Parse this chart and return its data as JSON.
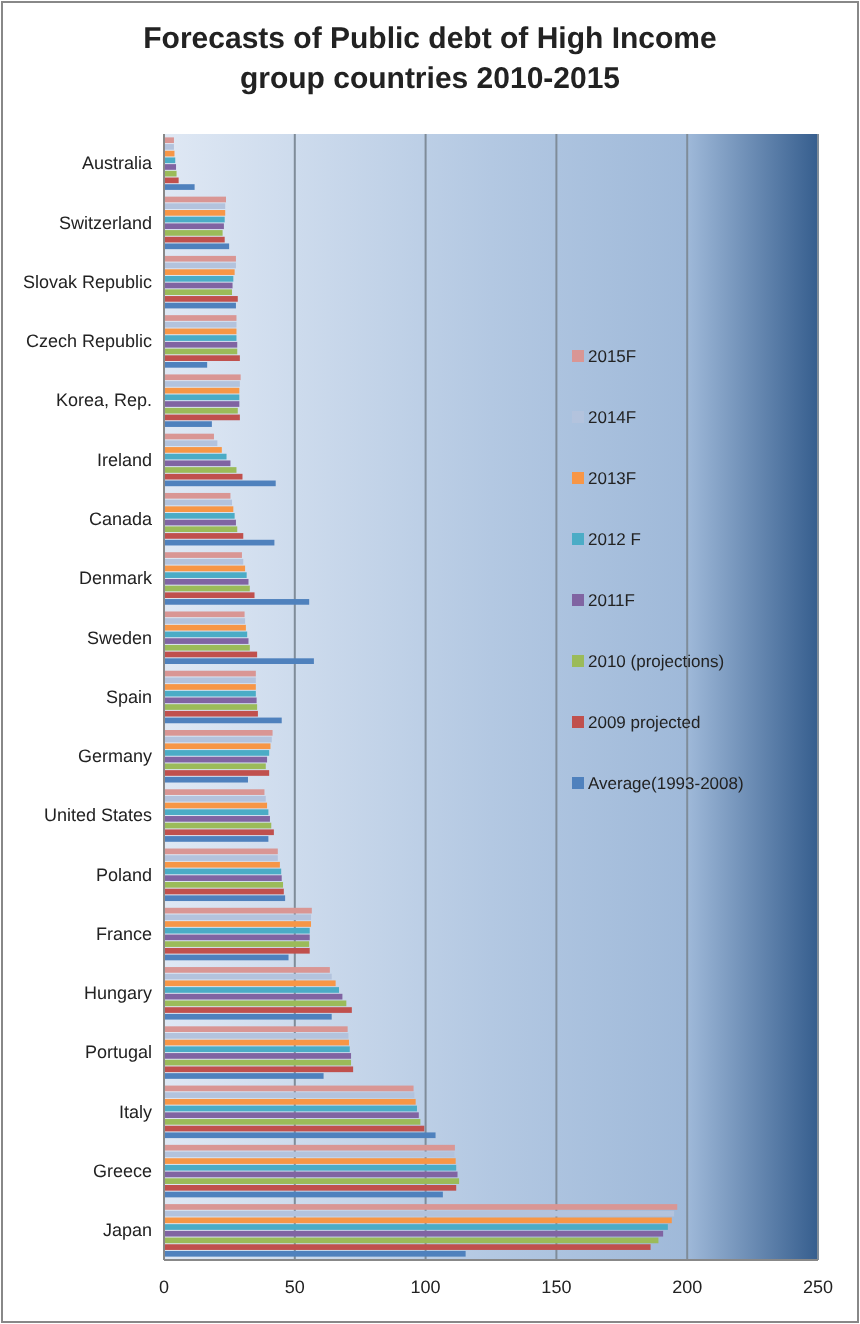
{
  "chart_data": {
    "type": "bar",
    "orientation": "horizontal",
    "title": "Forecasts of Public debt of High Income group countries 2010-2015",
    "categories": [
      "Australia",
      "Switzerland",
      "Slovak Republic",
      "Czech Republic",
      "Korea, Rep.",
      "Ireland",
      "Canada",
      "Denmark",
      "Sweden",
      "Spain",
      "Germany",
      "United States",
      "Poland",
      "France",
      "Hungary",
      "Portugal",
      "Italy",
      "Greece",
      "Japan"
    ],
    "series": [
      {
        "name": "2015F",
        "color": "#d99694",
        "values": [
          3.8,
          23.7,
          27.5,
          27.7,
          29.3,
          19.1,
          25.4,
          29.8,
          30.8,
          35.1,
          41.5,
          38.4,
          43.5,
          56.5,
          63.4,
          70.2,
          95.4,
          111.2,
          196.2
        ]
      },
      {
        "name": "2014F",
        "color": "#b3c3dd",
        "values": [
          3.8,
          23.4,
          27.5,
          27.7,
          29,
          20.4,
          26,
          30.3,
          31,
          35.1,
          41.2,
          38.9,
          43.5,
          56.2,
          64.1,
          70.5,
          95.7,
          111,
          195
        ]
      },
      {
        "name": "2013F",
        "color": "#f79646",
        "values": [
          4,
          23.4,
          27,
          27.7,
          28.8,
          22.1,
          26.5,
          31,
          31.3,
          35.1,
          40.7,
          39.4,
          44.3,
          56.2,
          65.6,
          70.7,
          96.2,
          111.5,
          194.1
        ]
      },
      {
        "name": "2012 F",
        "color": "#4bacc6",
        "values": [
          4.3,
          23.2,
          26.5,
          27.7,
          28.8,
          23.9,
          27,
          31.6,
          31.8,
          35.1,
          40.2,
          39.9,
          44.8,
          55.7,
          66.9,
          71,
          96.7,
          111.7,
          192.6
        ]
      },
      {
        "name": "2011F",
        "color": "#8064a2",
        "values": [
          4.6,
          22.9,
          26.2,
          28,
          28.8,
          25.4,
          27.5,
          32.3,
          32.3,
          35.4,
          39.4,
          40.5,
          45,
          55.7,
          68.2,
          71.5,
          97.4,
          112.2,
          190.8
        ]
      },
      {
        "name": "2010 (projections)",
        "color": "#9bbb59",
        "values": [
          4.8,
          22.4,
          26,
          28,
          28.2,
          27.7,
          28,
          32.8,
          32.8,
          35.6,
          38.9,
          41,
          45.5,
          55.5,
          69.7,
          71.5,
          98,
          112.8,
          189
        ]
      },
      {
        "name": "2009 projected",
        "color": "#c0504d",
        "values": [
          5.6,
          23.2,
          28.2,
          29,
          29,
          30,
          30.3,
          34.6,
          35.6,
          35.9,
          40.2,
          42,
          45.8,
          55.7,
          71.8,
          72.3,
          99.5,
          111.7,
          186
        ]
      },
      {
        "name": "Average(1993-2008)",
        "color": "#4f81bd",
        "values": [
          11.7,
          24.9,
          27.5,
          16.5,
          18.3,
          42.7,
          42.2,
          55.5,
          57.3,
          45,
          32.1,
          39.9,
          46.3,
          47.6,
          64.1,
          61,
          103.8,
          106.6,
          115.3
        ]
      }
    ],
    "xlim": [
      0,
      250
    ],
    "xticks": [
      0,
      50,
      100,
      150,
      200,
      250
    ],
    "grid": "x",
    "legend": "right"
  }
}
